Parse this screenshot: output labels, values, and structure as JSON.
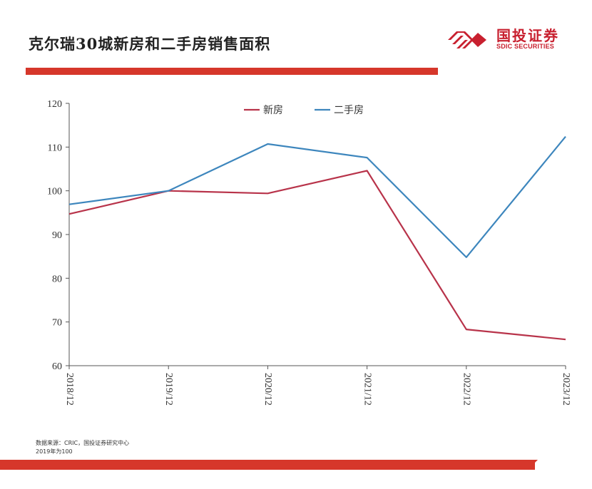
{
  "header": {
    "title": "克尔瑞30城新房和二手房销售面积",
    "logo_cn": "国投证券",
    "logo_en": "SDIC SECURITIES"
  },
  "colors": {
    "accent": "#d6372b",
    "logo": "#c8202f",
    "series_new": "#b8334a",
    "series_second": "#3d86bd"
  },
  "chart_data": {
    "type": "line",
    "title": "",
    "xlabel": "",
    "ylabel": "",
    "categories": [
      "2018/12",
      "2019/12",
      "2020/12",
      "2021/12",
      "2022/12",
      "2023/12"
    ],
    "ylim": [
      60,
      120
    ],
    "yticks": [
      60,
      70,
      80,
      90,
      100,
      110,
      120
    ],
    "grid": false,
    "legend_position": "top-center",
    "series": [
      {
        "name": "新房",
        "color": "#b8334a",
        "values": [
          94.7,
          100.0,
          99.4,
          104.6,
          68.3,
          66.0
        ]
      },
      {
        "name": "二手房",
        "color": "#3d86bd",
        "values": [
          96.9,
          100.0,
          110.7,
          107.6,
          84.8,
          112.4
        ]
      }
    ]
  },
  "footer": {
    "source": "数据来源：CRIC，国投证券研究中心",
    "note": "2019年为100"
  }
}
